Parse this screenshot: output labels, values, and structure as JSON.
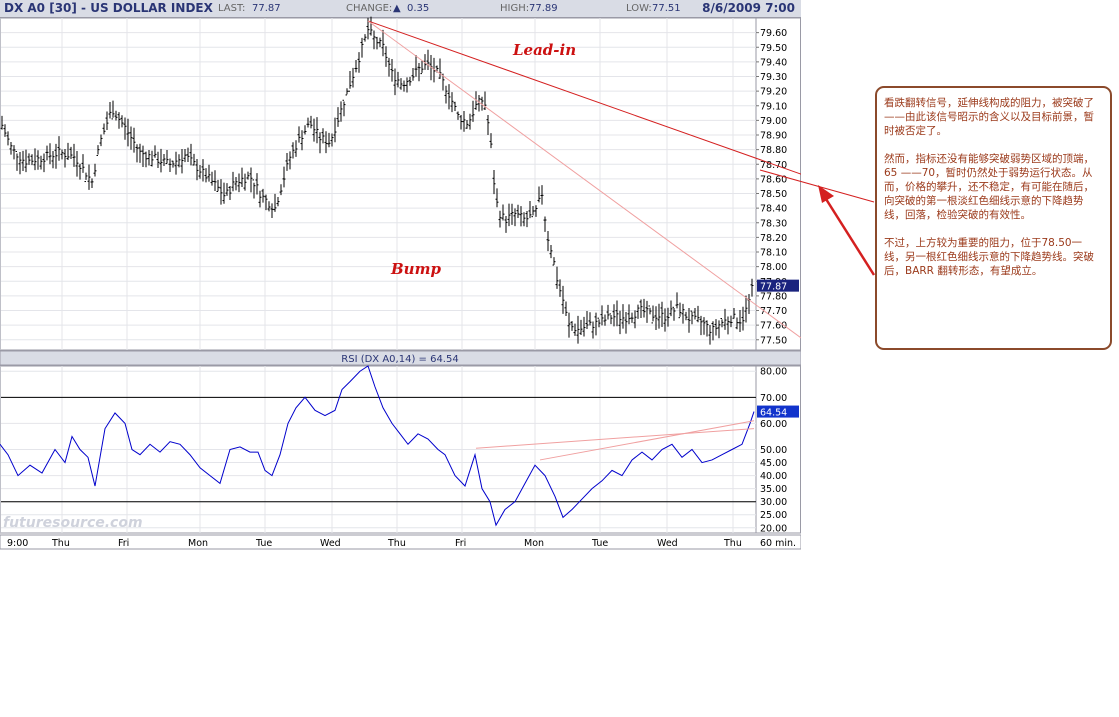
{
  "header": {
    "title": "DX A0 [30] - US DOLLAR INDEX",
    "last_label": "LAST:",
    "last_value": "77.87",
    "change_label": "CHANGE:",
    "change_value": "0.35",
    "high_label": "HIGH:",
    "high_value": "77.89",
    "low_label": "LOW:",
    "low_value": "77.51",
    "date": "8/6/2009 7:00"
  },
  "annotations": {
    "lead_in": "Lead-in",
    "bump": "Bump"
  },
  "note": {
    "p1": "看跌翻转信号，延伸线构成的阻力，被突破了——由此该信号昭示的含义以及目标前景，暂时被否定了。",
    "p2": "然而，指标还没有能够突破弱势区域的顶端，65 ——70，暂时仍然处于弱势运行状态。从而，价格的攀升，还不稳定，有可能在随后，向突破的第一根淡红色细线示意的下降趋势线，回落，检验突破的有效性。",
    "p3": "不过，上方较为重要的阻力，位于78.50一线，另一根红色细线示意的下降趋势线。突破后，BARR 翻转形态，有望成立。"
  },
  "colors": {
    "price": "#000000",
    "rsi": "#0000cc",
    "trend": "#d42020",
    "accent": "#2a3575"
  },
  "chart_data": [
    {
      "type": "ohlc-bar",
      "title": "DX A0 [30] - US DOLLAR INDEX",
      "ylim": [
        77.43,
        79.7
      ],
      "yticks": [
        "79.60",
        "79.50",
        "79.40",
        "79.30",
        "79.20",
        "79.10",
        "79.00",
        "78.90",
        "78.80",
        "78.70",
        "78.60",
        "78.50",
        "78.40",
        "78.30",
        "78.20",
        "78.10",
        "78.00",
        "77.90",
        "77.80",
        "77.70",
        "77.60",
        "77.50"
      ],
      "last_tag": "77.87",
      "x_labels": [
        "9:00",
        "Thu",
        "Fri",
        "Mon",
        "Tue",
        "Wed",
        "Thu",
        "Fri",
        "Mon",
        "Tue",
        "Wed",
        "Thu"
      ],
      "x_unit": "60 min.",
      "close_path": [
        [
          0,
          79.0
        ],
        [
          12,
          78.8
        ],
        [
          25,
          78.72
        ],
        [
          40,
          78.74
        ],
        [
          60,
          78.78
        ],
        [
          75,
          78.75
        ],
        [
          92,
          78.58
        ],
        [
          100,
          78.85
        ],
        [
          112,
          79.08
        ],
        [
          125,
          78.95
        ],
        [
          140,
          78.78
        ],
        [
          155,
          78.74
        ],
        [
          170,
          78.7
        ],
        [
          185,
          78.76
        ],
        [
          200,
          78.66
        ],
        [
          215,
          78.56
        ],
        [
          225,
          78.48
        ],
        [
          235,
          78.58
        ],
        [
          250,
          78.62
        ],
        [
          262,
          78.48
        ],
        [
          275,
          78.4
        ],
        [
          290,
          78.75
        ],
        [
          300,
          78.88
        ],
        [
          310,
          78.98
        ],
        [
          320,
          78.88
        ],
        [
          330,
          78.85
        ],
        [
          340,
          79.05
        ],
        [
          350,
          79.25
        ],
        [
          360,
          79.45
        ],
        [
          368,
          79.62
        ],
        [
          375,
          79.55
        ],
        [
          383,
          79.5
        ],
        [
          392,
          79.32
        ],
        [
          402,
          79.25
        ],
        [
          412,
          79.3
        ],
        [
          420,
          79.36
        ],
        [
          428,
          79.38
        ],
        [
          438,
          79.32
        ],
        [
          448,
          79.2
        ],
        [
          458,
          79.03
        ],
        [
          468,
          78.98
        ],
        [
          476,
          79.1
        ],
        [
          484,
          79.15
        ],
        [
          490,
          78.9
        ],
        [
          494,
          78.58
        ],
        [
          498,
          78.38
        ],
        [
          505,
          78.32
        ],
        [
          515,
          78.36
        ],
        [
          525,
          78.32
        ],
        [
          535,
          78.36
        ],
        [
          542,
          78.5
        ],
        [
          547,
          78.22
        ],
        [
          552,
          78.1
        ],
        [
          558,
          77.88
        ],
        [
          564,
          77.75
        ],
        [
          568,
          77.6
        ],
        [
          578,
          77.57
        ],
        [
          590,
          77.6
        ],
        [
          600,
          77.62
        ],
        [
          612,
          77.66
        ],
        [
          625,
          77.65
        ],
        [
          640,
          77.7
        ],
        [
          652,
          77.67
        ],
        [
          665,
          77.66
        ],
        [
          678,
          77.72
        ],
        [
          690,
          77.64
        ],
        [
          702,
          77.62
        ],
        [
          712,
          77.56
        ],
        [
          722,
          77.62
        ],
        [
          732,
          77.65
        ],
        [
          742,
          77.63
        ],
        [
          748,
          77.74
        ],
        [
          753,
          77.87
        ]
      ]
    },
    {
      "type": "line",
      "title": "RSI (DX A0,14) = 64.54",
      "ylim": [
        18,
        82
      ],
      "yticks": [
        "80.00",
        "70.00",
        "60.00",
        "50.00",
        "45.00",
        "40.00",
        "35.00",
        "30.00",
        "25.00",
        "20.00"
      ],
      "hlines": [
        70,
        30
      ],
      "last_tag": "64.54",
      "path": [
        [
          0,
          52
        ],
        [
          8,
          48
        ],
        [
          18,
          40
        ],
        [
          30,
          44
        ],
        [
          42,
          41
        ],
        [
          55,
          50
        ],
        [
          65,
          45
        ],
        [
          72,
          55
        ],
        [
          80,
          50
        ],
        [
          88,
          47
        ],
        [
          95,
          36
        ],
        [
          105,
          58
        ],
        [
          115,
          64
        ],
        [
          125,
          60
        ],
        [
          132,
          50
        ],
        [
          140,
          48
        ],
        [
          150,
          52
        ],
        [
          160,
          49
        ],
        [
          170,
          53
        ],
        [
          180,
          52
        ],
        [
          190,
          48
        ],
        [
          200,
          43
        ],
        [
          210,
          40
        ],
        [
          220,
          37
        ],
        [
          230,
          50
        ],
        [
          240,
          51
        ],
        [
          250,
          49
        ],
        [
          258,
          49
        ],
        [
          265,
          42
        ],
        [
          272,
          40
        ],
        [
          280,
          48
        ],
        [
          288,
          60
        ],
        [
          296,
          66
        ],
        [
          305,
          70
        ],
        [
          315,
          65
        ],
        [
          325,
          63
        ],
        [
          335,
          65
        ],
        [
          342,
          73
        ],
        [
          350,
          76
        ],
        [
          360,
          80
        ],
        [
          368,
          82
        ],
        [
          375,
          74
        ],
        [
          383,
          66
        ],
        [
          392,
          60
        ],
        [
          400,
          56
        ],
        [
          408,
          52
        ],
        [
          418,
          56
        ],
        [
          428,
          54
        ],
        [
          438,
          50
        ],
        [
          445,
          48
        ],
        [
          455,
          40
        ],
        [
          465,
          36
        ],
        [
          475,
          48
        ],
        [
          482,
          35
        ],
        [
          490,
          30
        ],
        [
          496,
          21
        ],
        [
          505,
          27
        ],
        [
          515,
          30
        ],
        [
          525,
          37
        ],
        [
          535,
          44
        ],
        [
          545,
          40
        ],
        [
          555,
          32
        ],
        [
          563,
          24
        ],
        [
          572,
          27
        ],
        [
          582,
          31
        ],
        [
          592,
          35
        ],
        [
          602,
          38
        ],
        [
          612,
          42
        ],
        [
          622,
          40
        ],
        [
          632,
          46
        ],
        [
          642,
          49
        ],
        [
          652,
          46
        ],
        [
          662,
          50
        ],
        [
          672,
          52
        ],
        [
          682,
          47
        ],
        [
          692,
          50
        ],
        [
          702,
          45
        ],
        [
          712,
          46
        ],
        [
          722,
          48
        ],
        [
          732,
          50
        ],
        [
          742,
          52
        ],
        [
          750,
          60
        ],
        [
          754,
          64.54
        ]
      ]
    }
  ],
  "watermark": "futuresource.com"
}
